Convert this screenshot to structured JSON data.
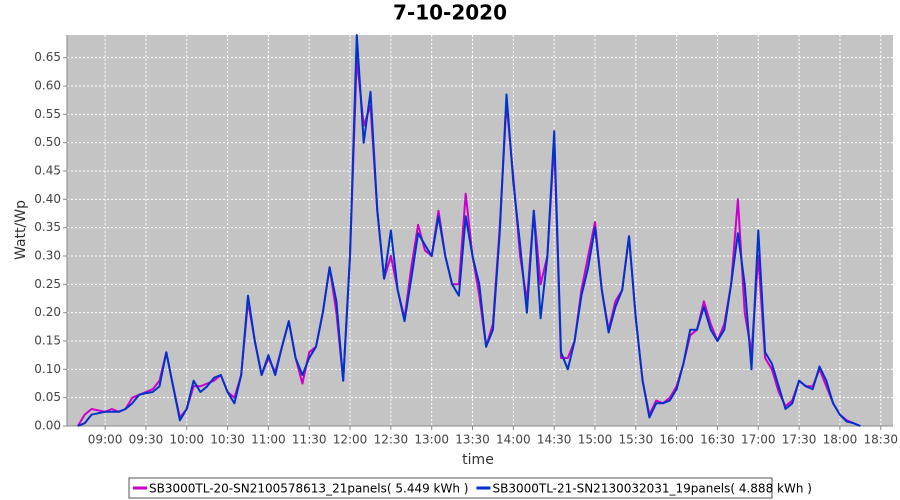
{
  "chart_data": {
    "type": "line",
    "title": "7-10-2020",
    "x_label": "time",
    "y_label": "Watt/Wp",
    "x": [
      "08:40",
      "08:45",
      "08:50",
      "09:00",
      "09:05",
      "09:10",
      "09:15",
      "09:20",
      "09:25",
      "09:30",
      "09:35",
      "09:40",
      "09:45",
      "09:50",
      "09:55",
      "10:00",
      "10:05",
      "10:10",
      "10:15",
      "10:20",
      "10:25",
      "10:30",
      "10:35",
      "10:40",
      "10:45",
      "10:50",
      "10:55",
      "11:00",
      "11:05",
      "11:10",
      "11:15",
      "11:20",
      "11:25",
      "11:30",
      "11:35",
      "11:40",
      "11:45",
      "11:50",
      "11:55",
      "12:00",
      "12:05",
      "12:10",
      "12:15",
      "12:20",
      "12:25",
      "12:30",
      "12:35",
      "12:40",
      "12:45",
      "12:50",
      "12:55",
      "13:00",
      "13:05",
      "13:10",
      "13:15",
      "13:20",
      "13:25",
      "13:30",
      "13:35",
      "13:40",
      "13:45",
      "13:50",
      "13:55",
      "14:00",
      "14:05",
      "14:10",
      "14:15",
      "14:20",
      "14:25",
      "14:30",
      "14:35",
      "14:40",
      "14:45",
      "14:50",
      "14:55",
      "15:00",
      "15:05",
      "15:10",
      "15:15",
      "15:20",
      "15:25",
      "15:30",
      "15:35",
      "15:40",
      "15:45",
      "15:50",
      "15:55",
      "16:00",
      "16:05",
      "16:10",
      "16:15",
      "16:20",
      "16:25",
      "16:30",
      "16:35",
      "16:40",
      "16:45",
      "16:50",
      "16:55",
      "17:00",
      "17:05",
      "17:10",
      "17:15",
      "17:20",
      "17:25",
      "17:30",
      "17:35",
      "17:40",
      "17:45",
      "17:50",
      "17:55",
      "18:00",
      "18:05",
      "18:10",
      "18:15"
    ],
    "series": [
      {
        "name": "SB3000TL-20-SN2100578613_21panels( 5.449 kWh )",
        "color": "#cc00cc",
        "values": [
          0,
          0.02,
          0.03,
          0.025,
          0.03,
          0.025,
          0.03,
          0.05,
          0.055,
          0.06,
          0.065,
          0.08,
          0.13,
          0.07,
          0.015,
          0.03,
          0.07,
          0.07,
          0.075,
          0.08,
          0.09,
          0.06,
          0.05,
          0.09,
          0.22,
          0.15,
          0.09,
          0.12,
          0.095,
          0.14,
          0.185,
          0.12,
          0.075,
          0.13,
          0.14,
          0.2,
          0.28,
          0.2,
          0.08,
          0.3,
          0.65,
          0.53,
          0.565,
          0.38,
          0.26,
          0.3,
          0.24,
          0.19,
          0.28,
          0.355,
          0.31,
          0.3,
          0.38,
          0.3,
          0.25,
          0.25,
          0.41,
          0.3,
          0.23,
          0.14,
          0.18,
          0.35,
          0.57,
          0.44,
          0.3,
          0.22,
          0.38,
          0.25,
          0.3,
          0.5,
          0.12,
          0.12,
          0.15,
          0.24,
          0.3,
          0.36,
          0.24,
          0.17,
          0.22,
          0.24,
          0.335,
          0.19,
          0.08,
          0.02,
          0.045,
          0.04,
          0.05,
          0.07,
          0.11,
          0.16,
          0.17,
          0.22,
          0.18,
          0.15,
          0.18,
          0.25,
          0.4,
          0.2,
          0.13,
          0.3,
          0.12,
          0.1,
          0.06,
          0.035,
          0.045,
          0.08,
          0.07,
          0.07,
          0.1,
          0.07,
          0.04,
          0.02,
          0.01,
          0.005,
          0
        ]
      },
      {
        "name": "SB3000TL-21-SN2130032031_19panels( 4.888 kWh )",
        "color": "#0033cc",
        "values": [
          0,
          0.005,
          0.02,
          0.025,
          0.025,
          0.025,
          0.03,
          0.04,
          0.055,
          0.058,
          0.06,
          0.07,
          0.13,
          0.07,
          0.01,
          0.03,
          0.08,
          0.06,
          0.07,
          0.085,
          0.09,
          0.06,
          0.04,
          0.09,
          0.23,
          0.15,
          0.09,
          0.125,
          0.09,
          0.14,
          0.185,
          0.12,
          0.09,
          0.12,
          0.14,
          0.2,
          0.28,
          0.22,
          0.08,
          0.3,
          0.69,
          0.5,
          0.59,
          0.38,
          0.26,
          0.345,
          0.24,
          0.185,
          0.26,
          0.34,
          0.32,
          0.3,
          0.37,
          0.3,
          0.25,
          0.23,
          0.37,
          0.3,
          0.25,
          0.14,
          0.17,
          0.34,
          0.585,
          0.43,
          0.32,
          0.2,
          0.38,
          0.19,
          0.3,
          0.52,
          0.13,
          0.1,
          0.15,
          0.23,
          0.28,
          0.35,
          0.24,
          0.165,
          0.21,
          0.24,
          0.335,
          0.19,
          0.08,
          0.015,
          0.04,
          0.04,
          0.045,
          0.065,
          0.11,
          0.17,
          0.17,
          0.21,
          0.17,
          0.15,
          0.17,
          0.25,
          0.34,
          0.25,
          0.1,
          0.345,
          0.13,
          0.11,
          0.07,
          0.03,
          0.04,
          0.08,
          0.07,
          0.065,
          0.105,
          0.08,
          0.04,
          0.02,
          0.008,
          0.005,
          0
        ]
      }
    ],
    "xlim": [
      "08:32",
      "18:39"
    ],
    "xticks": [
      "09:00",
      "09:30",
      "10:00",
      "10:30",
      "11:00",
      "11:30",
      "12:00",
      "12:30",
      "13:00",
      "13:30",
      "14:00",
      "14:30",
      "15:00",
      "15:30",
      "16:00",
      "16:30",
      "17:00",
      "17:30",
      "18:00",
      "18:30"
    ],
    "ylim": [
      0,
      0.69
    ],
    "yticks": [
      {
        "value": 0,
        "label": "0.00"
      },
      0.05,
      {
        "value": 0.1,
        "label": "0.10"
      },
      0.15,
      {
        "value": 0.2,
        "label": "0.20"
      },
      0.25,
      {
        "value": 0.3,
        "label": "0.30"
      },
      0.35,
      {
        "value": 0.4,
        "label": "0.40"
      },
      0.45,
      {
        "value": 0.5,
        "label": "0.50"
      },
      0.55,
      {
        "value": 0.6,
        "label": "0.60"
      },
      0.65
    ],
    "grid": true,
    "legend": "bottom"
  }
}
